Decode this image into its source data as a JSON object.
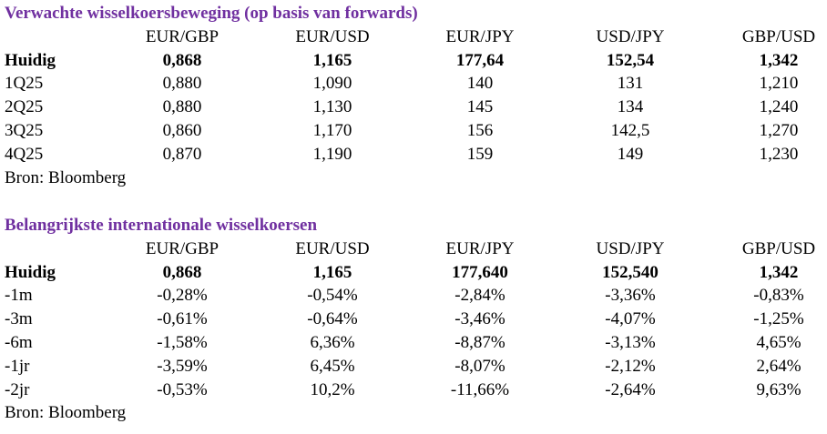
{
  "tables": [
    {
      "title": "Verwachte wisselkoersbeweging (op basis van forwards)",
      "columns": [
        "EUR/GBP",
        "EUR/USD",
        "EUR/JPY",
        "USD/JPY",
        "GBP/USD"
      ],
      "rows": [
        [
          "Huidig",
          "0,868",
          "1,165",
          "177,64",
          "152,54",
          "1,342"
        ],
        [
          "1Q25",
          "0,880",
          "1,090",
          "140",
          "131",
          "1,210"
        ],
        [
          "2Q25",
          "0,880",
          "1,130",
          "145",
          "134",
          "1,240"
        ],
        [
          "3Q25",
          "0,860",
          "1,170",
          "156",
          "142,5",
          "1,270"
        ],
        [
          "4Q25",
          "0,870",
          "1,190",
          "159",
          "149",
          "1,230"
        ]
      ],
      "source": "Bron: Bloomberg"
    },
    {
      "title": "Belangrijkste internationale wisselkoersen",
      "columns": [
        "EUR/GBP",
        "EUR/USD",
        "EUR/JPY",
        "USD/JPY",
        "GBP/USD"
      ],
      "rows": [
        [
          "Huidig",
          "0,868",
          "1,165",
          "177,640",
          "152,540",
          "1,342"
        ],
        [
          "-1m",
          "-0,28%",
          "-0,54%",
          "-2,84%",
          "-3,36%",
          "-0,83%"
        ],
        [
          "-3m",
          "-0,61%",
          "-0,64%",
          "-3,46%",
          "-4,07%",
          "-1,25%"
        ],
        [
          "-6m",
          "-1,58%",
          "6,36%",
          "-8,87%",
          "-3,13%",
          "4,65%"
        ],
        [
          "-1jr",
          "-3,59%",
          "6,45%",
          "-8,07%",
          "-2,12%",
          "2,64%"
        ],
        [
          "-2jr",
          "-0,53%",
          "10,2%",
          "-11,66%",
          "-2,64%",
          "9,63%"
        ]
      ],
      "source": "Bron: Bloomberg"
    }
  ]
}
